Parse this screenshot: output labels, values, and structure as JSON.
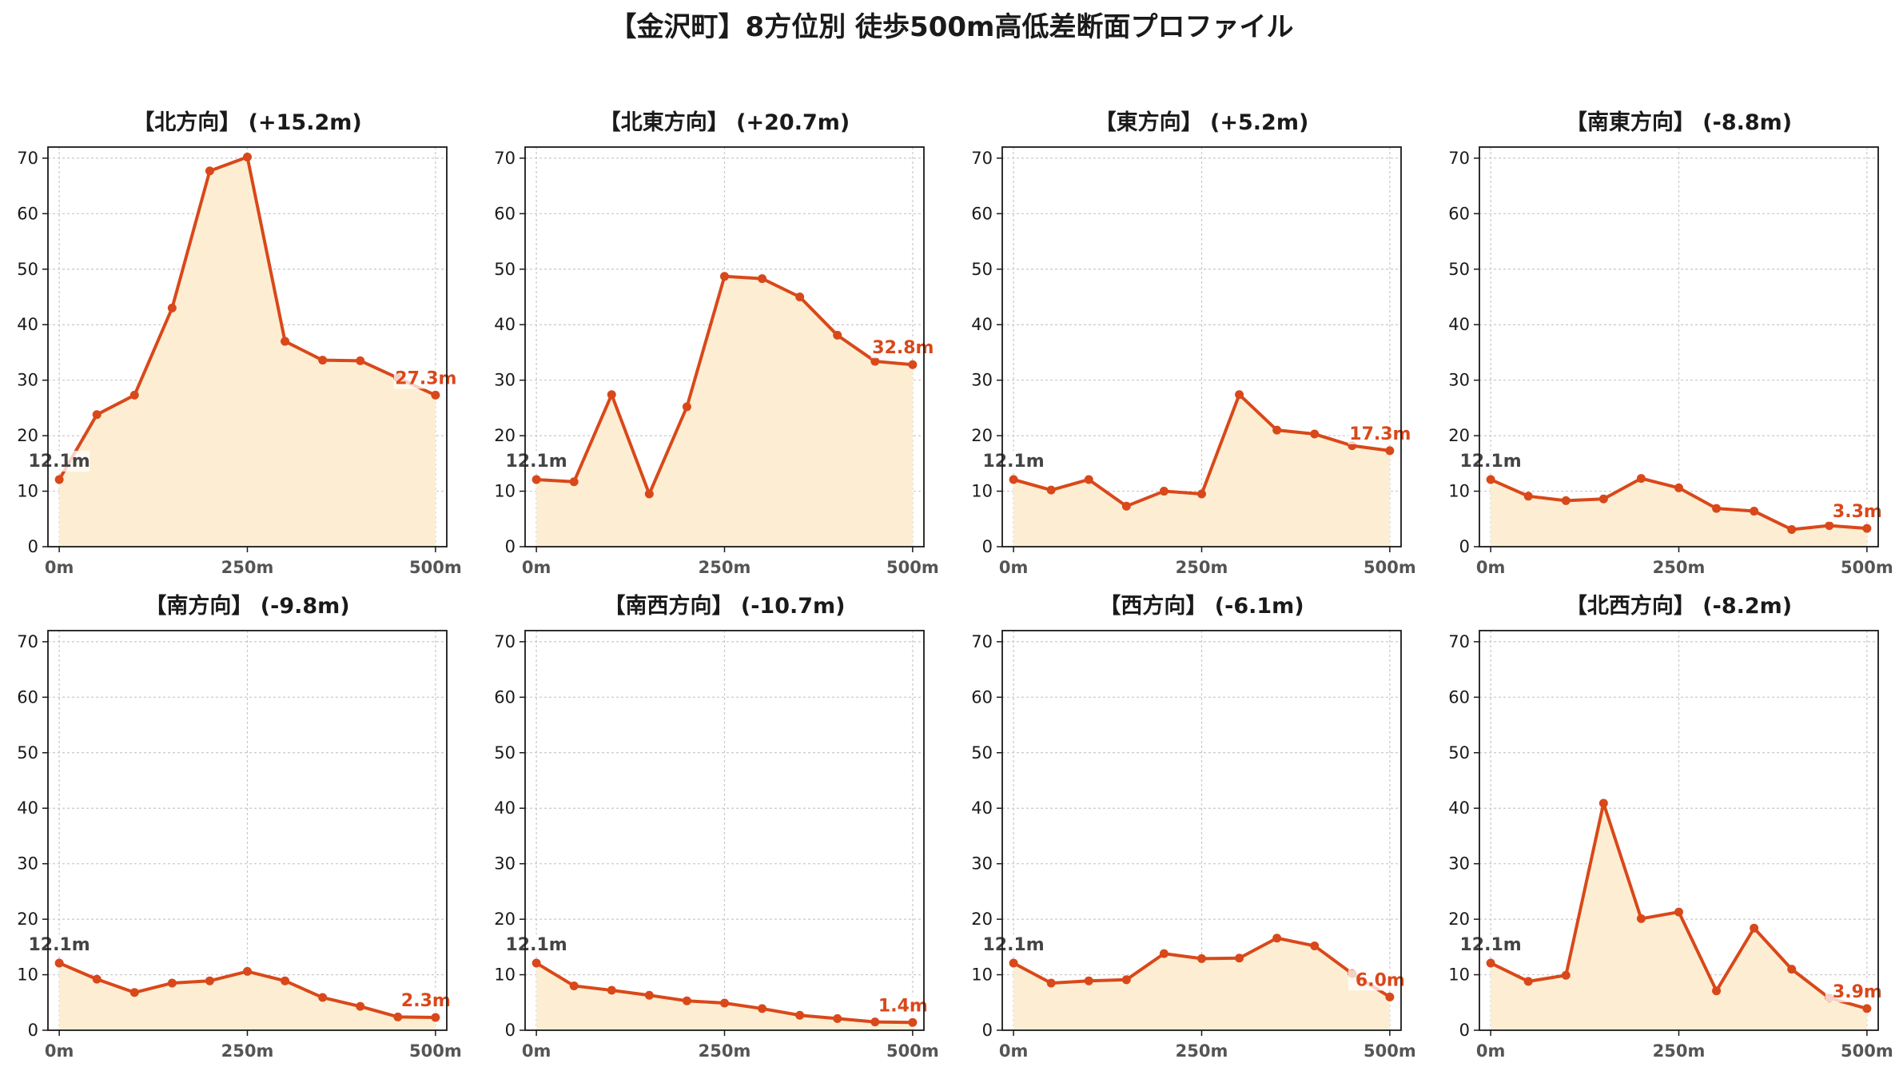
{
  "title": "【金沢町】8方位別 徒歩500m高低差断面プロファイル",
  "colors": {
    "line": "#d9481a",
    "fill": "#fdeed3",
    "start_label": "#444444",
    "end_label": "#d9481a",
    "grid": "#c8c8c8"
  },
  "chart_data": [
    {
      "type": "area",
      "title": "【北方向】 (+15.2m)",
      "x": [
        0,
        50,
        100,
        150,
        200,
        250,
        300,
        350,
        400,
        450,
        500
      ],
      "values": [
        12.1,
        23.8,
        27.3,
        43.0,
        67.7,
        70.2,
        37.0,
        33.6,
        33.5,
        30.4,
        27.3
      ],
      "start_label": "12.1m",
      "end_label": "27.3m",
      "ylim": [
        0,
        72
      ],
      "xlim": [
        -15,
        515
      ],
      "yticks": [
        "0",
        "10",
        "20",
        "30",
        "40",
        "50",
        "60",
        "70"
      ],
      "xticks": [
        "0m",
        "250m",
        "500m"
      ],
      "grid": true
    },
    {
      "type": "area",
      "title": "【北東方向】 (+20.7m)",
      "x": [
        0,
        50,
        100,
        150,
        200,
        250,
        300,
        350,
        400,
        450,
        500
      ],
      "values": [
        12.1,
        11.7,
        27.4,
        9.5,
        25.2,
        48.7,
        48.3,
        45.0,
        38.1,
        33.4,
        32.8
      ],
      "start_label": "12.1m",
      "end_label": "32.8m",
      "ylim": [
        0,
        72
      ],
      "xlim": [
        -15,
        515
      ],
      "yticks": [
        "0",
        "10",
        "20",
        "30",
        "40",
        "50",
        "60",
        "70"
      ],
      "xticks": [
        "0m",
        "250m",
        "500m"
      ],
      "grid": true
    },
    {
      "type": "area",
      "title": "【東方向】 (+5.2m)",
      "x": [
        0,
        50,
        100,
        150,
        200,
        250,
        300,
        350,
        400,
        450,
        500
      ],
      "values": [
        12.1,
        10.2,
        12.1,
        7.3,
        10.0,
        9.5,
        27.4,
        21.0,
        20.3,
        18.2,
        17.3
      ],
      "start_label": "12.1m",
      "end_label": "17.3m",
      "ylim": [
        0,
        72
      ],
      "xlim": [
        -15,
        515
      ],
      "yticks": [
        "0",
        "10",
        "20",
        "30",
        "40",
        "50",
        "60",
        "70"
      ],
      "xticks": [
        "0m",
        "250m",
        "500m"
      ],
      "grid": true
    },
    {
      "type": "area",
      "title": "【南東方向】 (-8.8m)",
      "x": [
        0,
        50,
        100,
        150,
        200,
        250,
        300,
        350,
        400,
        450,
        500
      ],
      "values": [
        12.1,
        9.1,
        8.3,
        8.6,
        12.3,
        10.6,
        6.9,
        6.4,
        3.1,
        3.8,
        3.3
      ],
      "start_label": "12.1m",
      "end_label": "3.3m",
      "ylim": [
        0,
        72
      ],
      "xlim": [
        -15,
        515
      ],
      "yticks": [
        "0",
        "10",
        "20",
        "30",
        "40",
        "50",
        "60",
        "70"
      ],
      "xticks": [
        "0m",
        "250m",
        "500m"
      ],
      "grid": true
    },
    {
      "type": "area",
      "title": "【南方向】 (-9.8m)",
      "x": [
        0,
        50,
        100,
        150,
        200,
        250,
        300,
        350,
        400,
        450,
        500
      ],
      "values": [
        12.1,
        9.2,
        6.8,
        8.5,
        8.9,
        10.6,
        8.9,
        5.9,
        4.3,
        2.4,
        2.3
      ],
      "start_label": "12.1m",
      "end_label": "2.3m",
      "ylim": [
        0,
        72
      ],
      "xlim": [
        -15,
        515
      ],
      "yticks": [
        "0",
        "10",
        "20",
        "30",
        "40",
        "50",
        "60",
        "70"
      ],
      "xticks": [
        "0m",
        "250m",
        "500m"
      ],
      "grid": true
    },
    {
      "type": "area",
      "title": "【南西方向】 (-10.7m)",
      "x": [
        0,
        50,
        100,
        150,
        200,
        250,
        300,
        350,
        400,
        450,
        500
      ],
      "values": [
        12.1,
        8.0,
        7.2,
        6.3,
        5.3,
        4.9,
        3.9,
        2.7,
        2.1,
        1.5,
        1.4
      ],
      "start_label": "12.1m",
      "end_label": "1.4m",
      "ylim": [
        0,
        72
      ],
      "xlim": [
        -15,
        515
      ],
      "yticks": [
        "0",
        "10",
        "20",
        "30",
        "40",
        "50",
        "60",
        "70"
      ],
      "xticks": [
        "0m",
        "250m",
        "500m"
      ],
      "grid": true
    },
    {
      "type": "area",
      "title": "【西方向】 (-6.1m)",
      "x": [
        0,
        50,
        100,
        150,
        200,
        250,
        300,
        350,
        400,
        450,
        500
      ],
      "values": [
        12.1,
        8.5,
        8.9,
        9.1,
        13.8,
        12.9,
        13.0,
        16.6,
        15.2,
        10.2,
        6.0
      ],
      "start_label": "12.1m",
      "end_label": "6.0m",
      "ylim": [
        0,
        72
      ],
      "xlim": [
        -15,
        515
      ],
      "yticks": [
        "0",
        "10",
        "20",
        "30",
        "40",
        "50",
        "60",
        "70"
      ],
      "xticks": [
        "0m",
        "250m",
        "500m"
      ],
      "grid": true
    },
    {
      "type": "area",
      "title": "【北西方向】 (-8.2m)",
      "x": [
        0,
        50,
        100,
        150,
        200,
        250,
        300,
        350,
        400,
        450,
        500
      ],
      "values": [
        12.1,
        8.8,
        9.9,
        40.9,
        20.1,
        21.3,
        7.1,
        18.4,
        11.0,
        5.8,
        3.9
      ],
      "start_label": "12.1m",
      "end_label": "3.9m",
      "ylim": [
        0,
        72
      ],
      "xlim": [
        -15,
        515
      ],
      "yticks": [
        "0",
        "10",
        "20",
        "30",
        "40",
        "50",
        "60",
        "70"
      ],
      "xticks": [
        "0m",
        "250m",
        "500m"
      ],
      "grid": true
    }
  ]
}
